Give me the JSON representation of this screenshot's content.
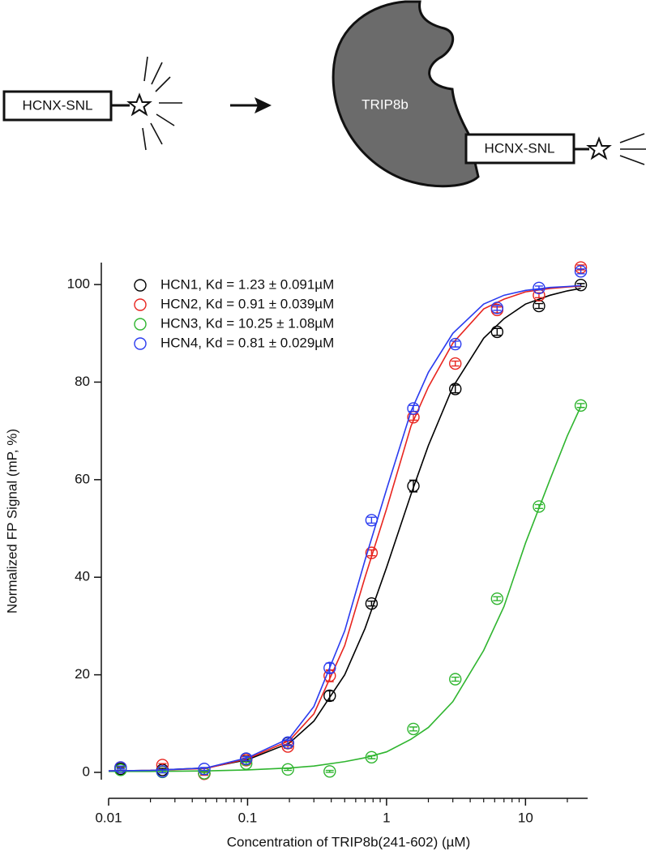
{
  "diagram": {
    "free_peptide": "HCNX-SNL",
    "protein": "TRIP8b",
    "bound_peptide": "HCNX-SNL"
  },
  "chart_data": {
    "type": "scatter",
    "xlabel": "Concentration of TRIP8b(241-602) (µM)",
    "ylabel": "Normalized FP Signal (mP, %)",
    "log_x": true,
    "xlim": [
      0.01,
      28
    ],
    "xticks": [
      0.01,
      0.1,
      1,
      10
    ],
    "xminorticks": [
      0.02,
      0.03,
      0.04,
      0.05,
      0.06,
      0.07,
      0.08,
      0.09,
      0.2,
      0.3,
      0.4,
      0.5,
      0.6,
      0.7,
      0.8,
      0.9,
      2,
      3,
      4,
      5,
      6,
      7,
      8,
      9,
      20
    ],
    "ylim": [
      -1.5,
      104.5
    ],
    "yticks": [
      0,
      20,
      40,
      60,
      80,
      100
    ],
    "legend": "upper left",
    "x": [
      0.0122,
      0.0244,
      0.0488,
      0.0977,
      0.195,
      0.39,
      0.78,
      1.56,
      3.125,
      6.25,
      12.5,
      25
    ],
    "fit_x": [
      0.01,
      0.02,
      0.05,
      0.1,
      0.2,
      0.3,
      0.5,
      0.7,
      1,
      1.5,
      2,
      3,
      5,
      7,
      10,
      15,
      20,
      25
    ],
    "series": [
      {
        "name": "HCN1,  Kd = 1.23 ± 0.091µM",
        "color": "#000000",
        "values": [
          0.7,
          0.5,
          -0.2,
          2.8,
          6,
          15.7,
          34.6,
          58.7,
          78.6,
          90.3,
          95.6,
          99.9
        ],
        "errors": [
          0.3,
          0.3,
          0.3,
          0.5,
          0.5,
          1,
          0.5,
          1.2,
          0.8,
          0.7,
          0.5,
          0.3
        ],
        "fit": [
          0.3,
          0.4,
          0.9,
          2.6,
          6,
          10.5,
          20,
          29.5,
          42,
          57,
          67,
          79,
          89,
          93,
          96,
          97.8,
          98.7,
          99.2
        ]
      },
      {
        "name": "HCN2,  Kd = 0.91 ± 0.039µM",
        "color": "#e8251f",
        "values": [
          1,
          1.5,
          -0.3,
          2.5,
          5.3,
          19.8,
          45,
          72.8,
          83.8,
          94.8,
          97.8,
          103.5
        ],
        "errors": [
          0.3,
          0.3,
          0.3,
          0.4,
          0.4,
          1.2,
          0.6,
          0.6,
          0.5,
          0.6,
          0.5,
          0.5
        ],
        "fit": [
          0.3,
          0.4,
          0.8,
          2.8,
          6.5,
          12,
          26,
          40,
          54,
          71,
          79,
          88,
          95,
          97,
          98.5,
          99.2,
          99.5,
          99.7
        ]
      },
      {
        "name": "HCN3,  Kd = 10.25 ± 1.08µM",
        "color": "#2fb52f",
        "values": [
          0.5,
          0.1,
          -0.2,
          1.8,
          0.6,
          0.2,
          3.1,
          8.9,
          19.1,
          35.6,
          54.5,
          75.2
        ],
        "errors": [
          0.2,
          0.2,
          0.2,
          0.3,
          0.2,
          0.2,
          0.3,
          0.4,
          0.4,
          0.4,
          0.4,
          0.4
        ],
        "fit": [
          0.2,
          0.2,
          0.3,
          0.5,
          0.9,
          1.3,
          2.2,
          3,
          4.2,
          6.8,
          9.2,
          14.5,
          25,
          34,
          47,
          60,
          69,
          75
        ]
      },
      {
        "name": "HCN4,  Kd = 0.81 ± 0.029µM",
        "color": "#2a3bef",
        "values": [
          1,
          0.2,
          0.7,
          2.8,
          6.1,
          21.4,
          51.7,
          74.6,
          87.8,
          95.2,
          99.3,
          102.7
        ],
        "errors": [
          0.3,
          0.3,
          0.3,
          0.4,
          0.5,
          1,
          0.6,
          0.6,
          0.6,
          0.5,
          0.4,
          0.5
        ],
        "fit": [
          0.3,
          0.4,
          0.9,
          3,
          7,
          13.5,
          29,
          43.5,
          58,
          74,
          82,
          90,
          96,
          97.8,
          98.8,
          99.4,
          99.6,
          99.8
        ]
      }
    ]
  }
}
